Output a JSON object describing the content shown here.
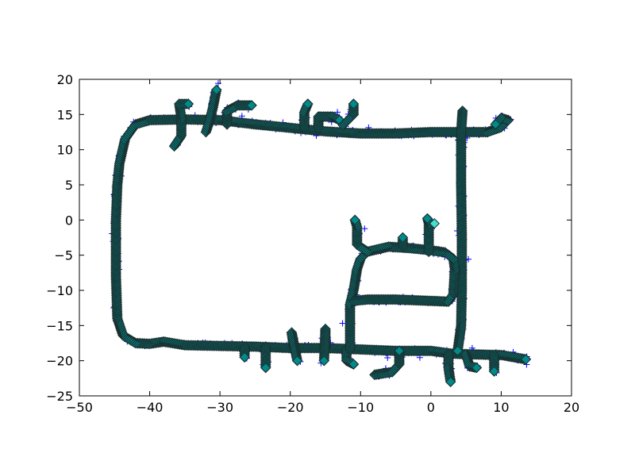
{
  "chart_data": {
    "type": "scatter",
    "title": "",
    "xlabel": "",
    "ylabel": "",
    "xlim": [
      -50,
      20
    ],
    "ylim": [
      -25,
      20
    ],
    "xticks": [
      -50,
      -40,
      -30,
      -20,
      -10,
      0,
      10,
      20
    ],
    "yticks": [
      -25,
      -20,
      -15,
      -10,
      -5,
      0,
      5,
      10,
      15,
      20
    ],
    "xtick_labels": [
      "−50",
      "−40",
      "−30",
      "−20",
      "−10",
      "0",
      "10",
      "20"
    ],
    "ytick_labels": [
      "−25",
      "−20",
      "−15",
      "−10",
      "−5",
      "0",
      "5",
      "10",
      "15",
      "20"
    ],
    "grid": false,
    "series": [
      {
        "marker": "diamond",
        "colors": {
          "fill": "#008b8b",
          "edge": "#1a2e2e",
          "highlight": "#40e0d0"
        },
        "segments": [
          {
            "points": [
              [
                -38,
                -17.3
              ],
              [
                -40,
                -17.6
              ],
              [
                -42,
                -17.5
              ],
              [
                -43.8,
                -16.4
              ],
              [
                -44.6,
                -14
              ],
              [
                -44.8,
                -8
              ],
              [
                -44.8,
                0
              ],
              [
                -44.6,
                5
              ],
              [
                -44.3,
                8
              ],
              [
                -43.5,
                11.5
              ],
              [
                -42,
                13.6
              ],
              [
                -40,
                14.2
              ],
              [
                -35,
                14.3
              ],
              [
                -30,
                14.2
              ],
              [
                -25,
                13.6
              ],
              [
                -20,
                13.1
              ],
              [
                -15,
                12.6
              ],
              [
                -10,
                12.3
              ],
              [
                -5,
                12.3
              ],
              [
                0,
                12.5
              ],
              [
                4,
                12.5
              ],
              [
                8,
                12.5
              ],
              [
                10,
                13.2
              ],
              [
                11,
                14.2
              ]
            ]
          },
          {
            "points": [
              [
                11,
                14.2
              ],
              [
                10,
                14.5
              ],
              [
                9.2,
                13.6
              ]
            ]
          },
          {
            "points": [
              [
                -38,
                -17.3
              ],
              [
                -35,
                -17.8
              ],
              [
                -30,
                -17.9
              ],
              [
                -25,
                -18
              ],
              [
                -20,
                -18.2
              ],
              [
                -15,
                -18.2
              ],
              [
                -10,
                -18.4
              ],
              [
                -5,
                -18.6
              ],
              [
                0,
                -18.6
              ],
              [
                3,
                -19
              ],
              [
                6,
                -19.1
              ],
              [
                10,
                -19.2
              ],
              [
                13.5,
                -19.8
              ]
            ]
          },
          {
            "points": [
              [
                4.5,
                15.5
              ],
              [
                4.3,
                12.5
              ],
              [
                4.3,
                5
              ],
              [
                4.4,
                -2
              ],
              [
                4.4,
                -10
              ],
              [
                4.3,
                -15
              ],
              [
                3.8,
                -18.6
              ]
            ]
          },
          {
            "points": [
              [
                -36.5,
                10.5
              ],
              [
                -35.5,
                12
              ],
              [
                -35.5,
                14.5
              ],
              [
                -35.8,
                16.5
              ],
              [
                -34.5,
                16.5
              ]
            ]
          },
          {
            "points": [
              [
                -32,
                12.5
              ],
              [
                -31.5,
                14
              ],
              [
                -31,
                16
              ],
              [
                -30.5,
                18.5
              ]
            ]
          },
          {
            "points": [
              [
                -29,
                13.6
              ],
              [
                -29,
                15.5
              ],
              [
                -27.5,
                16.3
              ],
              [
                -25.5,
                16.3
              ]
            ]
          },
          {
            "points": [
              [
                -18,
                13.1
              ],
              [
                -18,
                15.3
              ],
              [
                -17.5,
                16.5
              ]
            ]
          },
          {
            "points": [
              [
                -16,
                13
              ],
              [
                -16,
                14.7
              ],
              [
                -14,
                14.7
              ],
              [
                -13,
                14.2
              ]
            ]
          },
          {
            "points": [
              [
                -12.5,
                13.5
              ],
              [
                -11,
                15
              ],
              [
                -11,
                16.5
              ]
            ]
          },
          {
            "points": [
              [
                -26.5,
                -18
              ],
              [
                -26.5,
                -19.5
              ]
            ]
          },
          {
            "points": [
              [
                -23.5,
                -18
              ],
              [
                -23.5,
                -21
              ]
            ]
          },
          {
            "points": [
              [
                -19.5,
                -18.2
              ],
              [
                -19.8,
                -16
              ],
              [
                -19.5,
                -17.5
              ],
              [
                -19,
                -20
              ]
            ]
          },
          {
            "points": [
              [
                -15,
                -18.2
              ],
              [
                -15,
                -15.5
              ],
              [
                -15.2,
                -20
              ]
            ]
          },
          {
            "points": [
              [
                -12,
                -18.4
              ],
              [
                -12,
                -20
              ],
              [
                -11,
                -20.5
              ]
            ]
          },
          {
            "points": [
              [
                -8,
                -22
              ],
              [
                -5.5,
                -21.6
              ],
              [
                -4.5,
                -20.5
              ],
              [
                -4.5,
                -18.6
              ]
            ]
          },
          {
            "points": [
              [
                -11.5,
                -18.4
              ],
              [
                -11.5,
                -12
              ],
              [
                -11,
                -10
              ],
              [
                -10.5,
                -7
              ],
              [
                -10,
                -5.5
              ],
              [
                -9,
                -4.5
              ]
            ]
          },
          {
            "points": [
              [
                -11,
                -11.5
              ],
              [
                -9,
                -11.3
              ],
              [
                -5,
                -11.3
              ],
              [
                0,
                -11.5
              ],
              [
                2.5,
                -11.6
              ],
              [
                3.2,
                -10.5
              ],
              [
                3.4,
                -7
              ],
              [
                3.2,
                -5.5
              ],
              [
                2,
                -4.6
              ],
              [
                0,
                -4.3
              ],
              [
                -3,
                -4
              ],
              [
                -6,
                -3.8
              ],
              [
                -9,
                -4.5
              ],
              [
                -10.5,
                -3.5
              ],
              [
                -10.5,
                -1
              ],
              [
                -10.8,
                0
              ]
            ]
          },
          {
            "points": [
              [
                -4,
                -3.7
              ],
              [
                -4,
                -2.5
              ]
            ]
          },
          {
            "points": [
              [
                -0.3,
                -4.5
              ],
              [
                -0.3,
                -0.5
              ],
              [
                -0.5,
                0.2
              ]
            ]
          },
          {
            "points": [
              [
                2.5,
                -19
              ],
              [
                2.5,
                -21
              ],
              [
                2.8,
                -23
              ]
            ]
          },
          {
            "points": [
              [
                5,
                -19.1
              ],
              [
                5.5,
                -20.8
              ],
              [
                6.5,
                -21
              ]
            ]
          },
          {
            "points": [
              [
                9,
                -19.2
              ],
              [
                9,
                -21.5
              ]
            ]
          }
        ],
        "highlight_point": [
          0.5,
          -0.5
        ]
      },
      {
        "marker": "plus",
        "colors": {
          "stroke": "#0000ff"
        },
        "scatter_offsets_note_hidden": true
      }
    ]
  }
}
